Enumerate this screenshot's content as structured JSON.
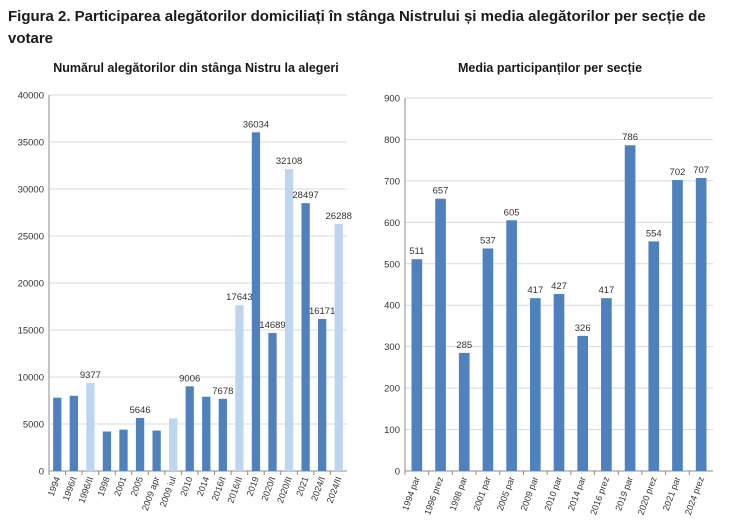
{
  "figure": {
    "title": "Figura 2. Participarea alegătorilor domiciliați în stânga Nistrului și media alegătorilor per secție de votare"
  },
  "colors": {
    "dark": "#4f81bd",
    "light": "#bdd5ee",
    "grid": "#d9d9d9",
    "axis": "#8c8c8c"
  },
  "chart_data": [
    {
      "type": "bar",
      "title": "Numărul alegătorilor din stânga Nistru la alegeri",
      "xlabel": "",
      "ylabel": "",
      "ylim": [
        0,
        40000
      ],
      "yticks": [
        0,
        5000,
        10000,
        15000,
        20000,
        25000,
        30000,
        35000,
        40000
      ],
      "grid": true,
      "categories": [
        "1994",
        "1996/I",
        "1996/II",
        "1998",
        "2001",
        "2005",
        "2009 apr",
        "2009 iul",
        "2010",
        "2014",
        "2016/I",
        "2016/II",
        "2019",
        "2020/I",
        "2020/II",
        "2021",
        "2024/I",
        "2024/II"
      ],
      "values": [
        7800,
        8000,
        9377,
        4200,
        4400,
        5646,
        4300,
        5600,
        9006,
        7900,
        7678,
        17643,
        36034,
        14689,
        32108,
        28497,
        16171,
        26288
      ],
      "labels": [
        "",
        "",
        "9377",
        "",
        "",
        "5646",
        "",
        "",
        "9006",
        "",
        "7678",
        "17643",
        "36034",
        "14689",
        "32108",
        "28497",
        "16171",
        "26288"
      ],
      "shade": [
        "dark",
        "dark",
        "light",
        "dark",
        "dark",
        "dark",
        "dark",
        "light",
        "dark",
        "dark",
        "dark",
        "light",
        "dark",
        "dark",
        "light",
        "dark",
        "dark",
        "light"
      ]
    },
    {
      "type": "bar",
      "title": "Media participanților per secție",
      "xlabel": "",
      "ylabel": "",
      "ylim": [
        0,
        900
      ],
      "yticks": [
        0,
        100,
        200,
        300,
        400,
        500,
        600,
        700,
        800,
        900
      ],
      "grid": true,
      "categories": [
        "1994 par",
        "1996 prez",
        "1998 par",
        "2001 par",
        "2005 par",
        "2009 par",
        "2010 par",
        "2014 par",
        "2016 prez",
        "2019 par",
        "2020 prez",
        "2021 par",
        "2024 prez"
      ],
      "values": [
        511,
        657,
        285,
        537,
        605,
        417,
        427,
        326,
        417,
        786,
        554,
        702,
        707
      ],
      "labels": [
        "511",
        "657",
        "285",
        "537",
        "605",
        "417",
        "427",
        "326",
        "417",
        "786",
        "554",
        "702",
        "707"
      ]
    }
  ]
}
